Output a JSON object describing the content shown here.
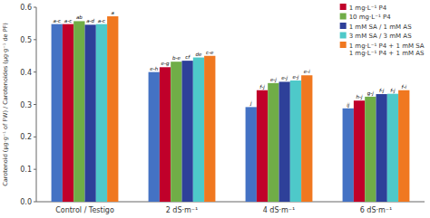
{
  "chart_data": {
    "type": "bar",
    "categories": [
      "Control / Testigo",
      "2 dS·m⁻¹",
      "4 dS·m⁻¹",
      "6 dS·m⁻¹"
    ],
    "series": [
      {
        "color": "#4472c4",
        "values": [
          0.548,
          0.4,
          0.292,
          0.288
        ],
        "annotations": [
          "a-c",
          "e-h",
          "j",
          "ij"
        ]
      },
      {
        "name": "1 mg·L⁻¹ P4",
        "color": "#c0002a",
        "values": [
          0.548,
          0.415,
          0.344,
          0.312
        ],
        "annotations": [
          "a-c",
          "e-g",
          "f-j",
          "h-j"
        ]
      },
      {
        "name": "10 mg·L⁻¹ P4",
        "color": "#70ad47",
        "values": [
          0.557,
          0.432,
          0.366,
          0.324
        ],
        "annotations": [
          "ab",
          "b-e",
          "e-j",
          "g-j"
        ]
      },
      {
        "name": "1 mM SA / 1 mM AS",
        "color": "#2e4099",
        "values": [
          0.546,
          0.435,
          0.37,
          0.332
        ],
        "annotations": [
          "a-d",
          "cf",
          "e-j",
          "f-j"
        ]
      },
      {
        "name": "3 mM SA / 3 mM AS",
        "color": "#4ec9c9",
        "values": [
          0.548,
          0.445,
          0.374,
          0.333
        ],
        "annotations": [
          "a-c",
          "de",
          "e-j",
          "f-j"
        ]
      },
      {
        "name": "1 mg·L⁻¹ P4 + 1 mM SA\n1 mg·L⁻¹ P4 + 1 mM AS",
        "color": "#f07820",
        "values": [
          0.572,
          0.45,
          0.39,
          0.344
        ],
        "annotations": [
          "a",
          "c-e",
          "e-i",
          "f-i"
        ]
      }
    ],
    "y_label": "Carotenoid (μg·g⁻¹ of FW) / Carotenoides (μg·g⁻¹ de PF)",
    "ylim": [
      0,
      0.6
    ],
    "yticks": [
      {
        "value": 0,
        "label": "0.0"
      },
      0.1,
      0.2,
      0.3,
      0.4,
      0.5,
      0.6
    ],
    "grid": false,
    "legend": "upper right"
  }
}
